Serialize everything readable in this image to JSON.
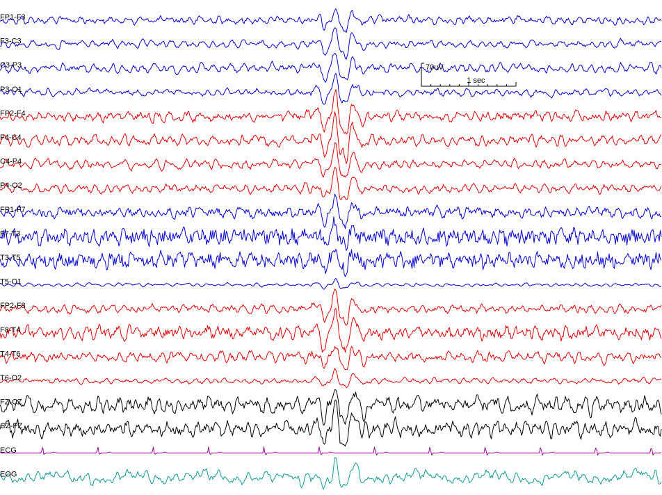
{
  "chart_data": {
    "type": "line",
    "title": "",
    "xlabel": "",
    "ylabel": "",
    "grid": false,
    "legend": "none",
    "colors": {
      "blue": "#0000cc",
      "red": "#dd0000",
      "black": "#000000",
      "purple": "#990099",
      "teal": "#119999"
    },
    "scale_bar": {
      "amplitude_label": "70uV",
      "time_label": "1 sec"
    },
    "duration_sec": 7,
    "event_time_sec": 3.4,
    "channels": [
      {
        "name": "FP1-F3",
        "color": "blue"
      },
      {
        "name": "F3-C3",
        "color": "blue"
      },
      {
        "name": "C3-P3",
        "color": "blue"
      },
      {
        "name": "P3-O1",
        "color": "blue"
      },
      {
        "name": "FP2-F4",
        "color": "red"
      },
      {
        "name": "F4-C4",
        "color": "red"
      },
      {
        "name": "C4-P4",
        "color": "red"
      },
      {
        "name": "P4-O2",
        "color": "red"
      },
      {
        "name": "FP1-F7",
        "color": "blue"
      },
      {
        "name": "F7-T3",
        "color": "blue"
      },
      {
        "name": "T3-T5",
        "color": "blue"
      },
      {
        "name": "T5-O1",
        "color": "blue"
      },
      {
        "name": "FP2-F8",
        "color": "red"
      },
      {
        "name": "F8-T4",
        "color": "red"
      },
      {
        "name": "T4-T6",
        "color": "red"
      },
      {
        "name": "T6-O2",
        "color": "red"
      },
      {
        "name": "FZ-CZ",
        "color": "black"
      },
      {
        "name": "CZ-PZ",
        "color": "black"
      },
      {
        "name": "ECG",
        "color": "purple"
      },
      {
        "name": "EOG",
        "color": "teal"
      }
    ]
  }
}
